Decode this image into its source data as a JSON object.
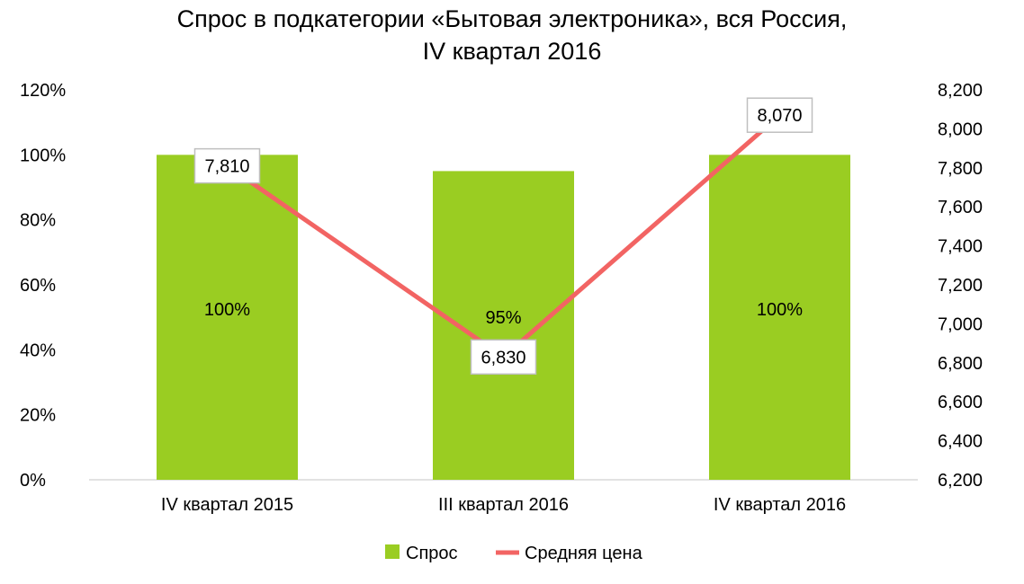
{
  "chart_data": {
    "type": "bar",
    "title": "Спрос в подкатегории «Бытовая электроника», вся Россия,",
    "subtitle": "IV квартал 2016",
    "categories": [
      "IV квартал 2015",
      "III квартал 2016",
      "IV квартал 2016"
    ],
    "series": [
      {
        "name": "Спрос",
        "type": "bar",
        "axis": "left",
        "values": [
          100,
          95,
          100
        ],
        "labels": [
          "100%",
          "95%",
          "100%"
        ],
        "color": "#9ACD22"
      },
      {
        "name": "Средняя цена",
        "type": "line",
        "axis": "right",
        "values": [
          7810,
          6830,
          8070
        ],
        "labels": [
          "7,810",
          "6,830",
          "8,070"
        ],
        "color": "#F26463"
      }
    ],
    "left_axis": {
      "ylim": [
        0,
        120
      ],
      "ticks": [
        0,
        20,
        40,
        60,
        80,
        100,
        120
      ],
      "tick_labels": [
        "0%",
        "20%",
        "40%",
        "60%",
        "80%",
        "100%",
        "120%"
      ]
    },
    "right_axis": {
      "ylim": [
        6200,
        8200
      ],
      "ticks": [
        6200,
        6400,
        6600,
        6800,
        7000,
        7200,
        7400,
        7600,
        7800,
        8000,
        8200
      ],
      "tick_labels": [
        "6,200",
        "6,400",
        "6,600",
        "6,800",
        "7,000",
        "7,200",
        "7,400",
        "7,600",
        "7,800",
        "8,000",
        "8,200"
      ]
    },
    "grid": false,
    "legend": "bottom"
  }
}
